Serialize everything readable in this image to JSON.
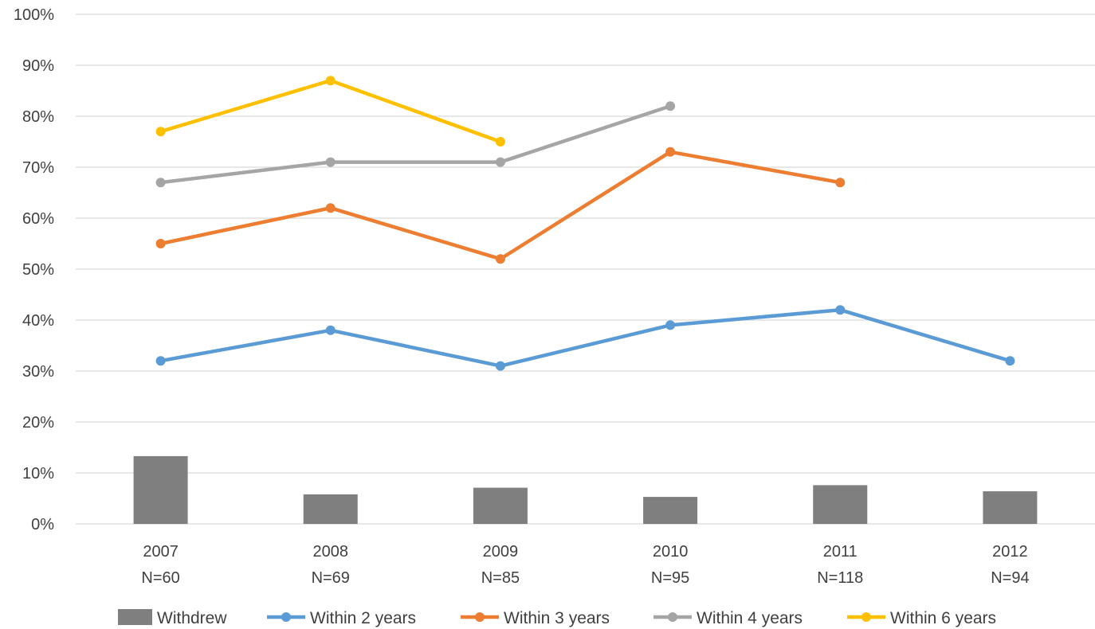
{
  "chart_data": {
    "type": "bar+line",
    "categories": [
      "2007",
      "2008",
      "2009",
      "2010",
      "2011",
      "2012"
    ],
    "category_sublabels": [
      "N=60",
      "N=69",
      "N=85",
      "N=95",
      "N=118",
      "N=94"
    ],
    "y_ticks": [
      "0%",
      "10%",
      "20%",
      "30%",
      "40%",
      "50%",
      "60%",
      "70%",
      "80%",
      "90%",
      "100%"
    ],
    "ylim": [
      0,
      100
    ],
    "grid": true,
    "legend_position": "bottom",
    "series": [
      {
        "name": "Withdrew",
        "type": "bar",
        "color": "#7f7f7f",
        "values": [
          13.3,
          5.8,
          7.1,
          5.3,
          7.6,
          6.4
        ]
      },
      {
        "name": "Within 2 years",
        "type": "line",
        "color": "#5b9bd5",
        "values": [
          32,
          38,
          31,
          39,
          42,
          32
        ]
      },
      {
        "name": "Within 3 years",
        "type": "line",
        "color": "#ed7d31",
        "values": [
          55,
          62,
          52,
          73,
          67,
          null
        ]
      },
      {
        "name": "Within 4 years",
        "type": "line",
        "color": "#a5a5a5",
        "values": [
          67,
          71,
          71,
          82,
          null,
          null
        ]
      },
      {
        "name": "Within 6 years",
        "type": "line",
        "color": "#ffc000",
        "values": [
          77,
          87,
          75,
          null,
          null,
          null
        ]
      }
    ]
  }
}
